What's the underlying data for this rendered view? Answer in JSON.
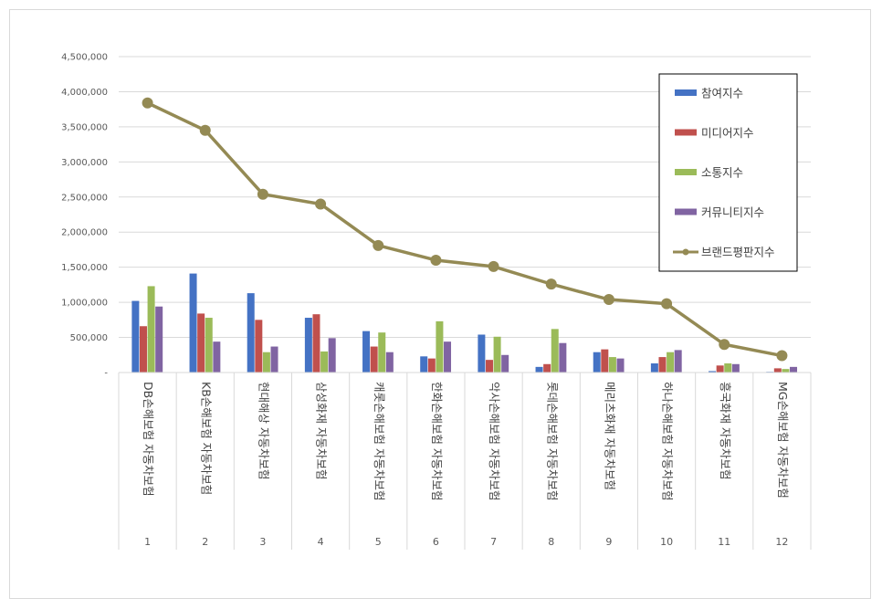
{
  "chart_data": {
    "type": "bar",
    "title": "",
    "xlabel": "",
    "ylabel": "",
    "ylim": [
      0,
      4500000
    ],
    "yticks": [
      "-",
      "500,000",
      "1,000,000",
      "1,500,000",
      "2,000,000",
      "2,500,000",
      "3,000,000",
      "3,500,000",
      "4,000,000",
      "4,500,000"
    ],
    "grid": true,
    "legend_position": "top-right",
    "ranks": [
      "1",
      "2",
      "3",
      "4",
      "5",
      "6",
      "7",
      "8",
      "9",
      "10",
      "11",
      "12"
    ],
    "categories": [
      "DB손해보험 자동차보험",
      "KB손해보험 자동차보험",
      "현대해상 자동차보험",
      "삼성화재 자동차보험",
      "캐롯손해보험 자동차보험",
      "한화손해보험 자동차보험",
      "악사손해보험 자동차보험",
      "롯데손해보험 자동차보험",
      "메리츠화재 자동차보험",
      "하나손해보험 자동차보험",
      "흥국화재 자동차보험",
      "MG손해보험 자동차보험"
    ],
    "series": [
      {
        "name": "참여지수",
        "type": "bar",
        "color": "#4472C4",
        "values": [
          1020000,
          1410000,
          1130000,
          780000,
          590000,
          230000,
          540000,
          80000,
          290000,
          130000,
          20000,
          10000
        ]
      },
      {
        "name": "미디어지수",
        "type": "bar",
        "color": "#C0504D",
        "values": [
          660000,
          840000,
          750000,
          830000,
          370000,
          200000,
          180000,
          120000,
          330000,
          220000,
          100000,
          60000
        ]
      },
      {
        "name": "소통지수",
        "type": "bar",
        "color": "#9BBB59",
        "values": [
          1230000,
          780000,
          290000,
          300000,
          570000,
          730000,
          510000,
          620000,
          220000,
          290000,
          130000,
          50000
        ]
      },
      {
        "name": "커뮤니티지수",
        "type": "bar",
        "color": "#8064A2",
        "values": [
          940000,
          440000,
          370000,
          490000,
          290000,
          440000,
          250000,
          420000,
          200000,
          320000,
          120000,
          80000
        ]
      },
      {
        "name": "브랜드평판지수",
        "type": "line",
        "color": "#948A54",
        "values": [
          3840000,
          3450000,
          2540000,
          2400000,
          1810000,
          1600000,
          1510000,
          1260000,
          1040000,
          980000,
          400000,
          240000
        ]
      }
    ]
  }
}
